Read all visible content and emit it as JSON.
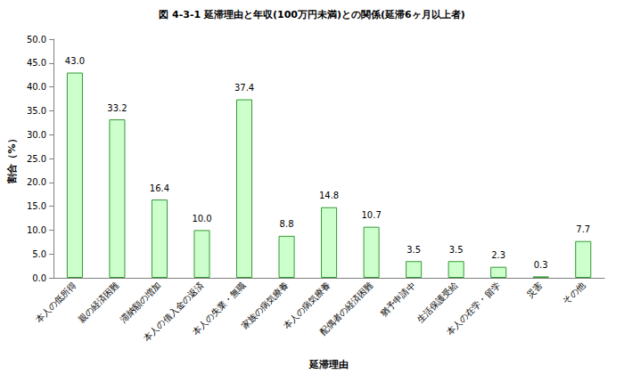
{
  "chart_data": {
    "type": "bar",
    "title": "図 4-3-1 延滞理由と年収(100万円未満)との関係(延滞6ヶ月以上者)",
    "x_label": "延滞理由",
    "y_label": "割合（%）",
    "categories": [
      "本人の低所得",
      "親の経済困難",
      "滞納額の増加",
      "本人の借入金の返済",
      "本人の失業・無職",
      "家族の病気療養",
      "本人の病気療養",
      "配偶者の経済困難",
      "猶予申請中",
      "生活保護受給",
      "本人の在学・留学",
      "災害",
      "その他"
    ],
    "values": [
      43.0,
      33.2,
      16.4,
      10.0,
      37.4,
      8.8,
      14.8,
      10.7,
      3.5,
      3.5,
      2.3,
      0.3,
      7.7
    ],
    "value_labels": [
      "43.0",
      "33.2",
      "16.4",
      "10.0",
      "37.4",
      "8.8",
      "14.8",
      "10.7",
      "3.5",
      "3.5",
      "2.3",
      "0.3",
      "7.7"
    ],
    "color": "#ccffcc",
    "ylim": [
      0,
      50
    ],
    "yticks": [
      {
        "value": 0,
        "label": "0.0"
      },
      {
        "value": 5,
        "label": "5.0"
      },
      {
        "value": 10,
        "label": "10.0"
      },
      {
        "value": 15,
        "label": "15.0"
      },
      {
        "value": 20,
        "label": "20.0"
      },
      {
        "value": 25,
        "label": "25.0"
      },
      {
        "value": 30,
        "label": "30.0"
      },
      {
        "value": 35,
        "label": "35.0"
      },
      {
        "value": 40,
        "label": "40.0"
      },
      {
        "value": 45,
        "label": "45.0"
      },
      {
        "value": 50,
        "label": "50.0"
      }
    ],
    "grid": false,
    "data_labels": true
  }
}
